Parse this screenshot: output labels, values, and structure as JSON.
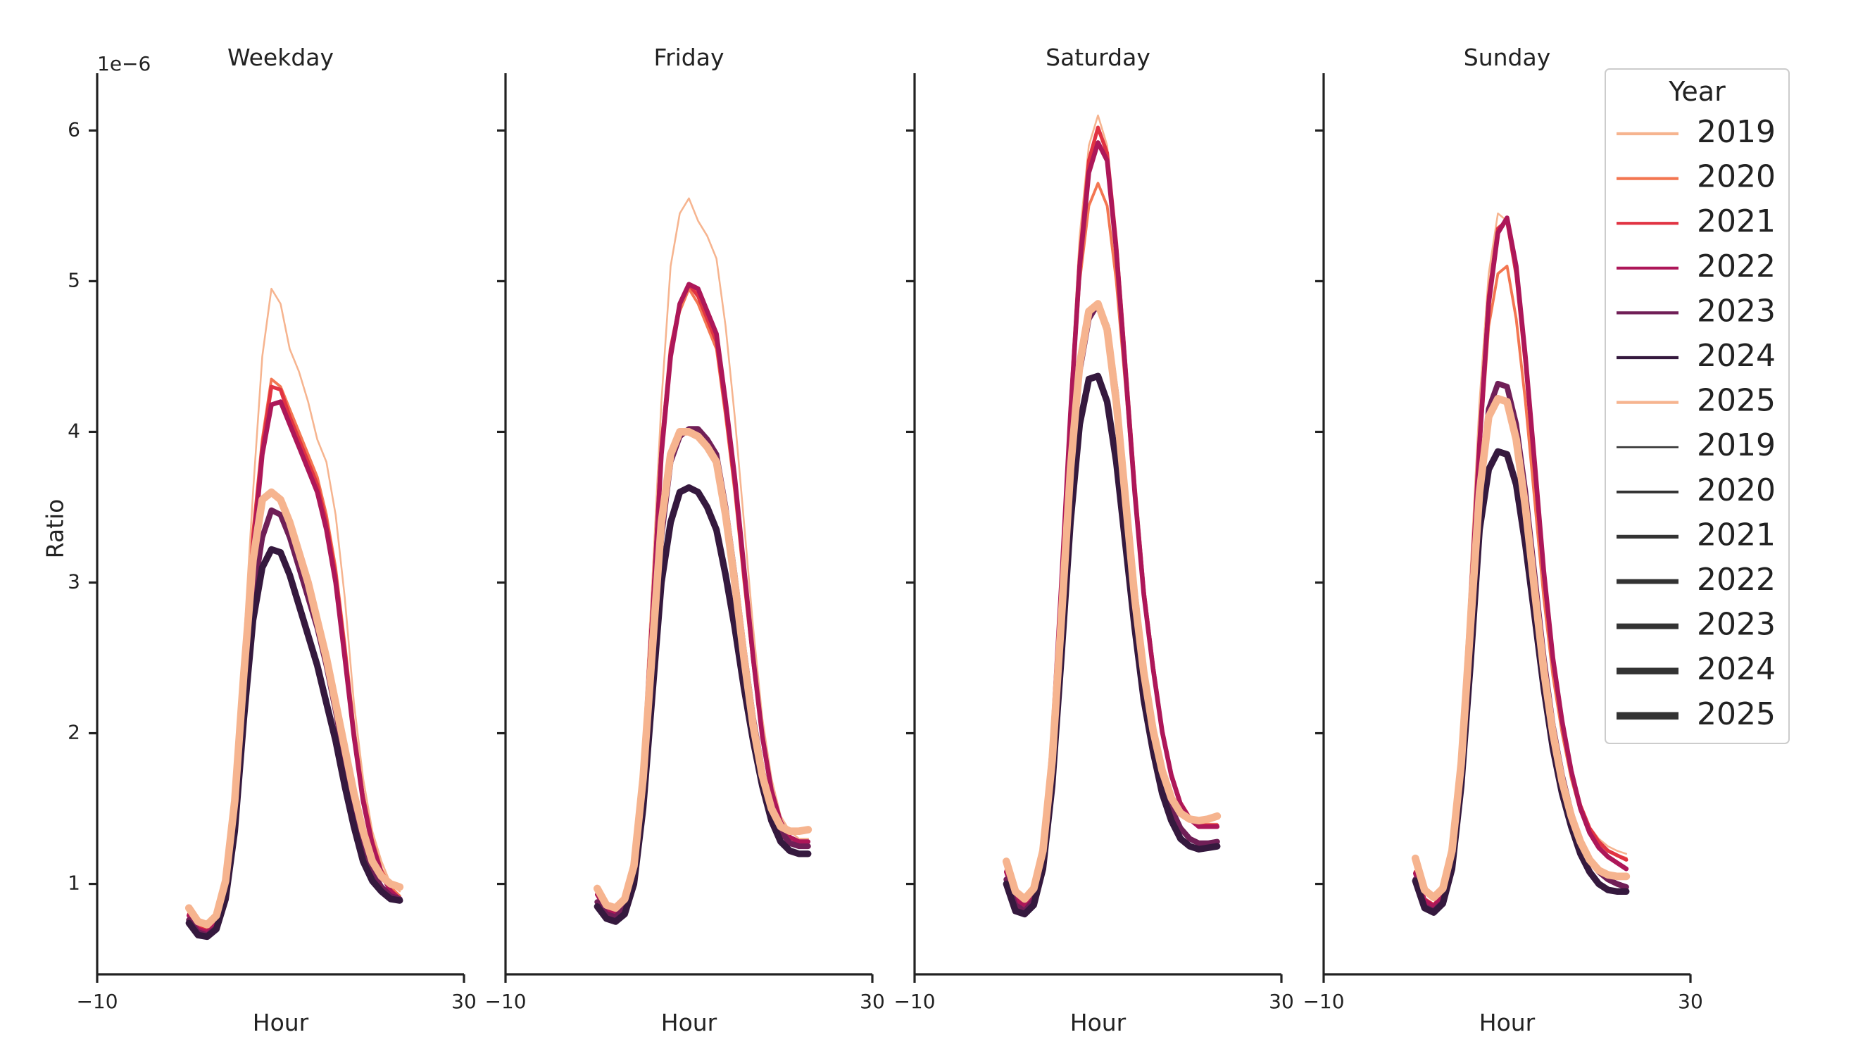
{
  "chart_data": {
    "type": "line",
    "offset_text": "1e−6",
    "ylabel": "Ratio",
    "xlabel": "Hour",
    "xlim": [
      -10,
      30
    ],
    "ylim": [
      0.4,
      6.38
    ],
    "xticks": [
      -10,
      30
    ],
    "xtick_labels": [
      "−10",
      "30"
    ],
    "yticks": [
      1,
      2,
      3,
      4,
      5,
      6
    ],
    "ytick_labels": [
      "1",
      "2",
      "3",
      "4",
      "5",
      "6"
    ],
    "legend": {
      "title": "Year",
      "placement": "top-right",
      "hue_entries": [
        {
          "label": "2019",
          "color": "#f6b48f"
        },
        {
          "label": "2020",
          "color": "#f37651"
        },
        {
          "label": "2021",
          "color": "#e13342"
        },
        {
          "label": "2022",
          "color": "#ad1759"
        },
        {
          "label": "2023",
          "color": "#701f57"
        },
        {
          "label": "2024",
          "color": "#35193e"
        },
        {
          "label": "2025",
          "color": "#f6b48f"
        }
      ],
      "size_entries": [
        {
          "label": "2019",
          "width": 1.5
        },
        {
          "label": "2020",
          "width": 2.3
        },
        {
          "label": "2021",
          "width": 3.1
        },
        {
          "label": "2022",
          "width": 3.9
        },
        {
          "label": "2023",
          "width": 4.7
        },
        {
          "label": "2024",
          "width": 5.5
        },
        {
          "label": "2025",
          "width": 6.3
        }
      ]
    },
    "series_style": {
      "2019": {
        "color": "#f6b48f",
        "width": 1.5
      },
      "2020": {
        "color": "#f37651",
        "width": 2.3
      },
      "2021": {
        "color": "#e13342",
        "width": 3.1
      },
      "2022": {
        "color": "#ad1759",
        "width": 3.9
      },
      "2023": {
        "color": "#701f57",
        "width": 4.7
      },
      "2024": {
        "color": "#35193e",
        "width": 5.5
      },
      "2025": {
        "color": "#f6b48f",
        "width": 6.3
      }
    },
    "panels": [
      {
        "title": "Weekday",
        "x": [
          0,
          1,
          2,
          3,
          4,
          5,
          6,
          7,
          8,
          9,
          10,
          11,
          12,
          13,
          14,
          15,
          16,
          17,
          18,
          19,
          20,
          21,
          22,
          23
        ],
        "series": [
          {
            "year": "2019",
            "values": [
              0.85,
              0.76,
              0.74,
              0.8,
              1.05,
              1.65,
              2.6,
              3.6,
              4.5,
              4.95,
              4.85,
              4.55,
              4.4,
              4.2,
              3.95,
              3.8,
              3.45,
              2.9,
              2.2,
              1.7,
              1.35,
              1.15,
              1.0,
              0.95
            ]
          },
          {
            "year": "2020",
            "values": [
              0.82,
              0.73,
              0.71,
              0.77,
              1.0,
              1.55,
              2.45,
              3.35,
              3.95,
              4.35,
              4.3,
              4.15,
              4.0,
              3.85,
              3.7,
              3.45,
              3.1,
              2.6,
              2.05,
              1.6,
              1.3,
              1.1,
              0.98,
              0.92
            ]
          },
          {
            "year": "2021",
            "values": [
              0.8,
              0.71,
              0.69,
              0.75,
              0.98,
              1.5,
              2.4,
              3.3,
              3.9,
              4.3,
              4.28,
              4.1,
              3.95,
              3.8,
              3.65,
              3.4,
              3.05,
              2.55,
              2.0,
              1.58,
              1.28,
              1.08,
              0.96,
              0.9
            ]
          },
          {
            "year": "2022",
            "values": [
              0.79,
              0.7,
              0.68,
              0.74,
              0.96,
              1.48,
              2.35,
              3.2,
              3.85,
              4.18,
              4.2,
              4.05,
              3.9,
              3.75,
              3.6,
              3.35,
              3.0,
              2.5,
              1.98,
              1.55,
              1.26,
              1.07,
              0.95,
              0.9
            ]
          },
          {
            "year": "2023",
            "values": [
              0.76,
              0.68,
              0.66,
              0.71,
              0.92,
              1.4,
              2.2,
              2.9,
              3.3,
              3.48,
              3.45,
              3.3,
              3.1,
              2.9,
              2.7,
              2.45,
              2.15,
              1.8,
              1.5,
              1.25,
              1.08,
              0.98,
              0.92,
              0.9
            ]
          },
          {
            "year": "2024",
            "values": [
              0.74,
              0.66,
              0.65,
              0.7,
              0.9,
              1.35,
              2.1,
              2.75,
              3.1,
              3.22,
              3.2,
              3.05,
              2.85,
              2.65,
              2.45,
              2.2,
              1.95,
              1.65,
              1.38,
              1.15,
              1.02,
              0.95,
              0.9,
              0.89
            ]
          },
          {
            "year": "2025",
            "values": [
              0.84,
              0.75,
              0.73,
              0.79,
              1.02,
              1.55,
              2.4,
              3.15,
              3.55,
              3.6,
              3.55,
              3.4,
              3.2,
              3.0,
              2.75,
              2.5,
              2.2,
              1.9,
              1.6,
              1.35,
              1.15,
              1.05,
              1.0,
              0.98
            ]
          }
        ]
      },
      {
        "title": "Friday",
        "x": [
          0,
          1,
          2,
          3,
          4,
          5,
          6,
          7,
          8,
          9,
          10,
          11,
          12,
          13,
          14,
          15,
          16,
          17,
          18,
          19,
          20,
          21,
          22,
          23
        ],
        "series": [
          {
            "year": "2019",
            "values": [
              0.98,
              0.87,
              0.85,
              0.92,
              1.2,
              1.9,
              3.0,
              4.2,
              5.1,
              5.45,
              5.55,
              5.4,
              5.3,
              5.15,
              4.7,
              4.1,
              3.4,
              2.7,
              2.1,
              1.7,
              1.45,
              1.35,
              1.3,
              1.3
            ]
          },
          {
            "year": "2020",
            "values": [
              0.95,
              0.85,
              0.83,
              0.9,
              1.15,
              1.8,
              2.85,
              3.95,
              4.55,
              4.8,
              4.95,
              4.85,
              4.7,
              4.55,
              4.1,
              3.6,
              3.0,
              2.45,
              1.95,
              1.6,
              1.4,
              1.3,
              1.28,
              1.28
            ]
          },
          {
            "year": "2021",
            "values": [
              0.94,
              0.84,
              0.82,
              0.88,
              1.13,
              1.78,
              2.8,
              3.9,
              4.55,
              4.85,
              4.98,
              4.9,
              4.75,
              4.6,
              4.15,
              3.65,
              3.05,
              2.48,
              1.97,
              1.62,
              1.41,
              1.31,
              1.28,
              1.28
            ]
          },
          {
            "year": "2022",
            "values": [
              0.93,
              0.83,
              0.81,
              0.87,
              1.12,
              1.75,
              2.75,
              3.85,
              4.5,
              4.85,
              4.98,
              4.95,
              4.8,
              4.65,
              4.2,
              3.7,
              3.1,
              2.5,
              1.98,
              1.62,
              1.41,
              1.31,
              1.28,
              1.28
            ]
          },
          {
            "year": "2023",
            "values": [
              0.88,
              0.8,
              0.78,
              0.84,
              1.05,
              1.6,
              2.45,
              3.3,
              3.8,
              3.97,
              4.02,
              4.02,
              3.95,
              3.85,
              3.5,
              3.05,
              2.55,
              2.1,
              1.75,
              1.5,
              1.35,
              1.27,
              1.25,
              1.25
            ]
          },
          {
            "year": "2024",
            "values": [
              0.85,
              0.77,
              0.75,
              0.8,
              1.0,
              1.5,
              2.25,
              3.0,
              3.4,
              3.6,
              3.63,
              3.6,
              3.5,
              3.35,
              3.05,
              2.7,
              2.3,
              1.95,
              1.65,
              1.42,
              1.28,
              1.22,
              1.2,
              1.2
            ]
          },
          {
            "year": "2025",
            "values": [
              0.97,
              0.86,
              0.84,
              0.9,
              1.12,
              1.7,
              2.55,
              3.4,
              3.85,
              4.0,
              4.0,
              3.97,
              3.9,
              3.8,
              3.45,
              3.0,
              2.5,
              2.05,
              1.72,
              1.5,
              1.38,
              1.35,
              1.35,
              1.36
            ]
          }
        ]
      },
      {
        "title": "Saturday",
        "x": [
          0,
          1,
          2,
          3,
          4,
          5,
          6,
          7,
          8,
          9,
          10,
          11,
          12,
          13,
          14,
          15,
          16,
          17,
          18,
          19,
          20,
          21,
          22,
          23
        ],
        "series": [
          {
            "year": "2019",
            "values": [
              1.1,
              0.92,
              0.88,
              0.95,
              1.25,
              1.95,
              3.05,
              4.25,
              5.3,
              5.9,
              6.1,
              5.9,
              5.3,
              4.5,
              3.7,
              3.0,
              2.5,
              2.05,
              1.75,
              1.55,
              1.45,
              1.4,
              1.4,
              1.4
            ]
          },
          {
            "year": "2020",
            "values": [
              1.08,
              0.9,
              0.86,
              0.93,
              1.22,
              1.9,
              2.95,
              4.05,
              5.0,
              5.5,
              5.65,
              5.5,
              5.0,
              4.3,
              3.55,
              2.9,
              2.42,
              2.0,
              1.72,
              1.53,
              1.43,
              1.38,
              1.38,
              1.38
            ]
          },
          {
            "year": "2021",
            "values": [
              1.09,
              0.91,
              0.87,
              0.94,
              1.24,
              1.93,
              3.0,
              4.15,
              5.15,
              5.8,
              6.02,
              5.85,
              5.25,
              4.45,
              3.65,
              2.95,
              2.45,
              2.02,
              1.73,
              1.54,
              1.44,
              1.39,
              1.39,
              1.39
            ]
          },
          {
            "year": "2022",
            "values": [
              1.08,
              0.9,
              0.86,
              0.93,
              1.23,
              1.92,
              2.98,
              4.12,
              5.1,
              5.72,
              5.92,
              5.8,
              5.2,
              4.4,
              3.6,
              2.92,
              2.43,
              2.01,
              1.72,
              1.53,
              1.43,
              1.38,
              1.38,
              1.38
            ]
          },
          {
            "year": "2023",
            "values": [
              1.03,
              0.86,
              0.82,
              0.89,
              1.15,
              1.75,
              2.7,
              3.7,
              4.4,
              4.75,
              4.85,
              4.7,
              4.25,
              3.6,
              2.95,
              2.42,
              2.03,
              1.72,
              1.5,
              1.37,
              1.3,
              1.27,
              1.27,
              1.28
            ]
          },
          {
            "year": "2024",
            "values": [
              1.0,
              0.82,
              0.8,
              0.86,
              1.1,
              1.65,
              2.5,
              3.4,
              4.05,
              4.35,
              4.37,
              4.2,
              3.8,
              3.25,
              2.7,
              2.22,
              1.88,
              1.6,
              1.42,
              1.3,
              1.25,
              1.23,
              1.24,
              1.25
            ]
          },
          {
            "year": "2025",
            "values": [
              1.15,
              0.95,
              0.9,
              0.97,
              1.22,
              1.82,
              2.75,
              3.75,
              4.45,
              4.8,
              4.85,
              4.68,
              4.2,
              3.55,
              2.9,
              2.4,
              2.02,
              1.75,
              1.57,
              1.47,
              1.43,
              1.42,
              1.43,
              1.45
            ]
          }
        ]
      },
      {
        "title": "Sunday",
        "x": [
          0,
          1,
          2,
          3,
          4,
          5,
          6,
          7,
          8,
          9,
          10,
          11,
          12,
          13,
          14,
          15,
          16,
          17,
          18,
          19,
          20,
          21,
          22,
          23
        ],
        "series": [
          {
            "year": "2019",
            "values": [
              1.15,
              0.95,
              0.9,
              0.98,
              1.3,
              2.0,
              3.05,
              4.2,
              5.05,
              5.45,
              5.4,
              5.0,
              4.4,
              3.7,
              3.0,
              2.45,
              2.05,
              1.75,
              1.52,
              1.38,
              1.3,
              1.25,
              1.22,
              1.2
            ]
          },
          {
            "year": "2020",
            "values": [
              1.08,
              0.9,
              0.86,
              0.93,
              1.2,
              1.85,
              2.8,
              3.85,
              4.7,
              5.05,
              5.1,
              4.75,
              4.2,
              3.55,
              2.9,
              2.38,
              2.0,
              1.7,
              1.48,
              1.35,
              1.27,
              1.22,
              1.19,
              1.17
            ]
          },
          {
            "year": "2021",
            "values": [
              1.08,
              0.9,
              0.86,
              0.93,
              1.21,
              1.87,
              2.85,
              3.95,
              4.9,
              5.35,
              5.4,
              5.05,
              4.45,
              3.75,
              3.05,
              2.48,
              2.07,
              1.75,
              1.52,
              1.37,
              1.28,
              1.22,
              1.19,
              1.16
            ]
          },
          {
            "year": "2022",
            "values": [
              1.07,
              0.89,
              0.85,
              0.92,
              1.2,
              1.85,
              2.82,
              3.92,
              4.85,
              5.32,
              5.42,
              5.1,
              4.5,
              3.8,
              3.08,
              2.5,
              2.08,
              1.75,
              1.5,
              1.34,
              1.24,
              1.18,
              1.14,
              1.1
            ]
          },
          {
            "year": "2023",
            "values": [
              1.03,
              0.85,
              0.82,
              0.88,
              1.12,
              1.7,
              2.55,
              3.5,
              4.15,
              4.32,
              4.3,
              4.05,
              3.6,
              3.05,
              2.5,
              2.05,
              1.72,
              1.47,
              1.28,
              1.16,
              1.08,
              1.03,
              1.0,
              0.98
            ]
          },
          {
            "year": "2024",
            "values": [
              1.02,
              0.84,
              0.81,
              0.87,
              1.1,
              1.65,
              2.45,
              3.35,
              3.75,
              3.87,
              3.85,
              3.65,
              3.25,
              2.78,
              2.3,
              1.9,
              1.6,
              1.38,
              1.2,
              1.08,
              1.0,
              0.96,
              0.95,
              0.95
            ]
          },
          {
            "year": "2025",
            "values": [
              1.17,
              0.96,
              0.91,
              0.97,
              1.22,
              1.8,
              2.7,
              3.6,
              4.1,
              4.22,
              4.2,
              3.95,
              3.5,
              2.95,
              2.42,
              2.0,
              1.68,
              1.45,
              1.28,
              1.16,
              1.09,
              1.06,
              1.05,
              1.05
            ]
          }
        ]
      }
    ]
  }
}
